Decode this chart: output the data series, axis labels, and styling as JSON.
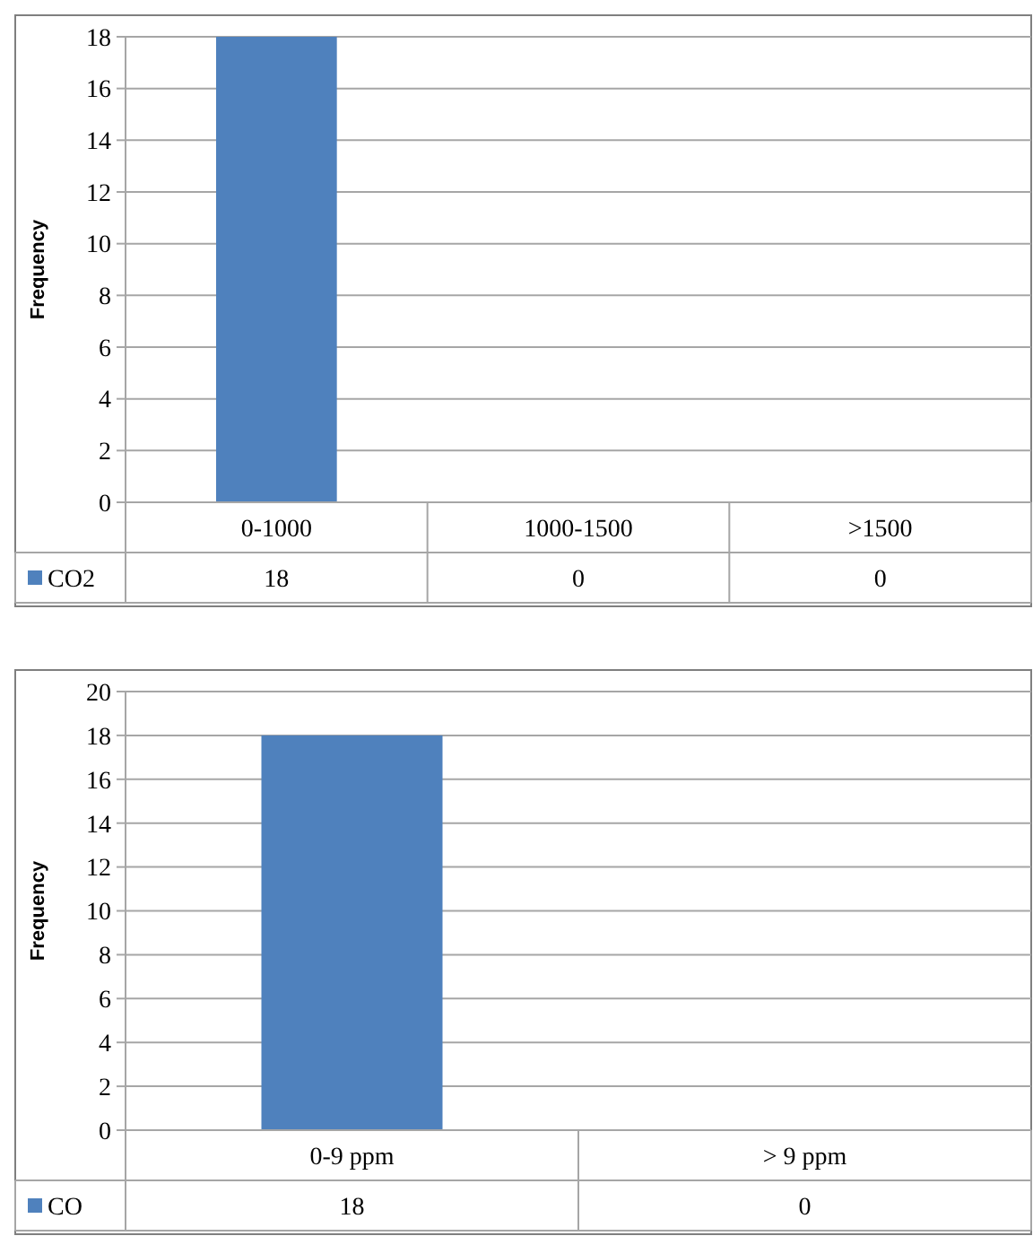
{
  "chart_data": [
    {
      "type": "bar",
      "ylabel": "Frequency",
      "categories": [
        "0-1000",
        "1000-1500",
        ">1500"
      ],
      "series": [
        {
          "name": "CO2",
          "color": "#4f81bd",
          "values": [
            18,
            0,
            0
          ]
        }
      ],
      "ylim": [
        0,
        18
      ],
      "yticks": [
        0,
        2,
        4,
        6,
        8,
        10,
        12,
        14,
        16,
        18
      ],
      "grid": "y",
      "data_labels": true,
      "legend": "bottom"
    },
    {
      "type": "bar",
      "ylabel": "Frequency",
      "categories": [
        "0-9 ppm",
        "> 9 ppm"
      ],
      "series": [
        {
          "name": "CO",
          "color": "#4f81bd",
          "values": [
            18,
            0
          ]
        }
      ],
      "ylim": [
        0,
        20
      ],
      "yticks": [
        0,
        2,
        4,
        6,
        8,
        10,
        12,
        14,
        16,
        18,
        20
      ],
      "grid": "y",
      "data_labels": true,
      "legend": "bottom"
    }
  ]
}
